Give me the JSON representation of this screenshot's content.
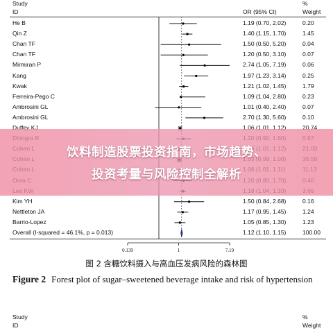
{
  "plot": {
    "header_study_line1": "Study",
    "header_study_line2": "ID",
    "header_or": "OR (95% CI)",
    "header_weight_line1": "%",
    "header_weight_line2": "Weight",
    "ticks": [
      "0.139",
      "1",
      "7.19"
    ]
  },
  "chart_data": {
    "type": "forest",
    "scale": "log",
    "xlim": [
      0.139,
      7.19
    ],
    "reference_line": 1,
    "studies": [
      {
        "id": "He B",
        "or": 1.19,
        "lo": 0.7,
        "hi": 2.02,
        "or_text": "1.19 (0.70, 2.02)",
        "weight": "0.20",
        "w": 0.2
      },
      {
        "id": "Qin Z",
        "or": 1.4,
        "lo": 1.15,
        "hi": 1.7,
        "or_text": "1.40 (1.15, 1.70)",
        "weight": "1.45",
        "w": 1.45
      },
      {
        "id": "Chan TF",
        "or": 1.5,
        "lo": 0.5,
        "hi": 5.2,
        "or_text": "1.50 (0.50, 5.20)",
        "weight": "0.04",
        "w": 0.04
      },
      {
        "id": "Chan TF",
        "or": 1.2,
        "lo": 0.5,
        "hi": 3.1,
        "or_text": "1.20 (0.50, 3.10)",
        "weight": "0.07",
        "w": 0.07
      },
      {
        "id": "Mirmiran  P",
        "or": 2.74,
        "lo": 1.05,
        "hi": 7.19,
        "or_text": "2.74 (1.05, 7.19)",
        "weight": "0.06",
        "w": 0.06
      },
      {
        "id": "Kang",
        "or": 1.97,
        "lo": 1.23,
        "hi": 3.14,
        "or_text": "1.97 (1.23, 3.14)",
        "weight": "0.25",
        "w": 0.25
      },
      {
        "id": "Kwak",
        "or": 1.21,
        "lo": 1.02,
        "hi": 1.45,
        "or_text": "1.21 (1.02, 1.45)",
        "weight": "1.79",
        "w": 1.79
      },
      {
        "id": "Ferreira-Pego C",
        "or": 1.09,
        "lo": 1.04,
        "hi": 2.8,
        "or_text": "1.09 (1.04, 2.80)",
        "weight": "0.23",
        "w": 0.23
      },
      {
        "id": "Ambrosini GL",
        "or": 1.01,
        "lo": 0.4,
        "hi": 2.4,
        "or_text": "1.01 (0.40, 2.40)",
        "weight": "0.07",
        "w": 0.07
      },
      {
        "id": "Ambrosini GL",
        "or": 2.7,
        "lo": 1.3,
        "hi": 5.6,
        "or_text": "2.70 (1.30, 5.60)",
        "weight": "0.10",
        "w": 0.1
      },
      {
        "id": "Duffey KJ",
        "or": 1.06,
        "lo": 1.01,
        "hi": 1.12,
        "or_text": "1.06 (1.01, 1.12)",
        "weight": "20.74",
        "w": 20.74
      },
      {
        "id": "Dhingra R",
        "or": 1.2,
        "lo": 0.9,
        "hi": 1.6,
        "or_text": "1.20 (0.90, 1.60)",
        "weight": "0.67",
        "w": 0.67
      },
      {
        "id": "Cohen L",
        "or": 1.06,
        "lo": 1.01,
        "hi": 1.12,
        "or_text": "1.06 (1.01, 1.12)",
        "weight": "21.03",
        "w": 21.03
      },
      {
        "id": "Cohen L",
        "or": 1.03,
        "lo": 0.99,
        "hi": 1.08,
        "or_text": "1.03 (0.99, 1.08)",
        "weight": "35.59",
        "w": 35.59
      },
      {
        "id": "Cohen L",
        "or": 1.06,
        "lo": 1.01,
        "hi": 1.11,
        "or_text": "1.06 (1.01, 1.11)",
        "weight": "11.13",
        "w": 11.13
      },
      {
        "id": "Orea C",
        "or": 1.2,
        "lo": 0.8,
        "hi": 1.7,
        "or_text": "1.20 (0.80, 1.70)",
        "weight": "0.40",
        "w": 0.4
      },
      {
        "id": "Lee KW",
        "or": 1.18,
        "lo": 1.04,
        "hi": 1.33,
        "or_text": "1.18 (1.04, 1.33)",
        "weight": "3.66",
        "w": 3.66
      },
      {
        "id": "Kim YH",
        "or": 1.5,
        "lo": 0.84,
        "hi": 2.68,
        "or_text": "1.50 (0.84, 2.68)",
        "weight": "0.16",
        "w": 0.16
      },
      {
        "id": "Nettleton JA",
        "or": 1.17,
        "lo": 0.95,
        "hi": 1.45,
        "or_text": "1.17 (0.95, 1.45)",
        "weight": "1.24",
        "w": 1.24
      },
      {
        "id": "Barrio-Lopez",
        "or": 1.05,
        "lo": 0.85,
        "hi": 1.3,
        "or_text": "1.05 (0.85, 1.30)",
        "weight": "1.23",
        "w": 1.23
      }
    ],
    "overall": {
      "id": "Overall  (I-squared = 46.1%, p = 0.013)",
      "or": 1.12,
      "lo": 1.1,
      "hi": 1.15,
      "or_text": "1.12 (1.10, 1.15)",
      "weight": "100.00"
    }
  },
  "caption": {
    "cn": "图 2   含糖饮料摄入与高血压发病风险的森林图",
    "en_label": "Figure 2",
    "en_text": "Forest plot of sugar–sweetened beverage intake and risk of hypertension"
  },
  "overlay": {
    "line1": "饮料制造股票投资指南，市场趋势、",
    "line2": "投资考量与风险控制全解析"
  },
  "next_figure": {
    "study_line1": "Study",
    "study_line2": "ID",
    "weight_line1": "%",
    "weight_line2": "Weight"
  }
}
